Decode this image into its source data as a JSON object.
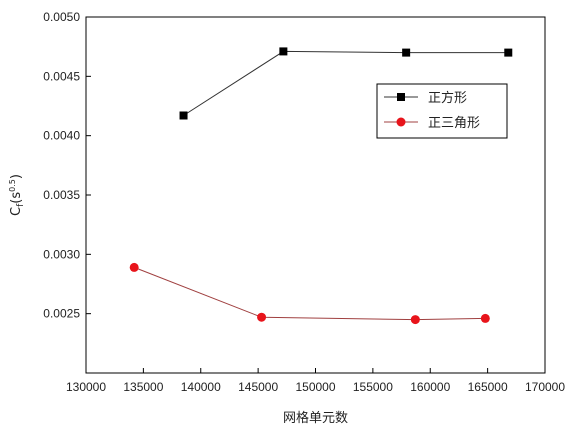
{
  "chart_data": {
    "type": "line",
    "xlabel": "网格单元数",
    "ylabel": {
      "base": "C",
      "subscript": "f",
      "paren_open": "(s",
      "superscript": "0.5",
      "paren_close": ")"
    },
    "xlim": [
      130000,
      170000
    ],
    "ylim": [
      0.002,
      0.005
    ],
    "x_ticks": [
      130000,
      135000,
      140000,
      145000,
      150000,
      155000,
      160000,
      165000,
      170000
    ],
    "x_tick_labels": [
      "130000",
      "135000",
      "140000",
      "145000",
      "150000",
      "155000",
      "160000",
      "165000",
      "170000"
    ],
    "y_ticks": [
      0.0025,
      0.003,
      0.0035,
      0.004,
      0.0045,
      0.005
    ],
    "y_tick_labels": [
      "0.0025",
      "0.0030",
      "0.0035",
      "0.0040",
      "0.0045",
      "0.0050"
    ],
    "grid": false,
    "legend_position": "top-right",
    "series": [
      {
        "name": "正方形",
        "marker": "square",
        "color": "#000000",
        "line_color": "#333333",
        "x": [
          138500,
          147200,
          157900,
          166800
        ],
        "y": [
          0.00417,
          0.00471,
          0.0047,
          0.0047
        ]
      },
      {
        "name": "正三角形",
        "marker": "circle",
        "color": "#e8141b",
        "line_color": "#a04040",
        "x": [
          134200,
          145300,
          158700,
          164800
        ],
        "y": [
          0.00289,
          0.00247,
          0.00245,
          0.00246
        ]
      }
    ]
  }
}
